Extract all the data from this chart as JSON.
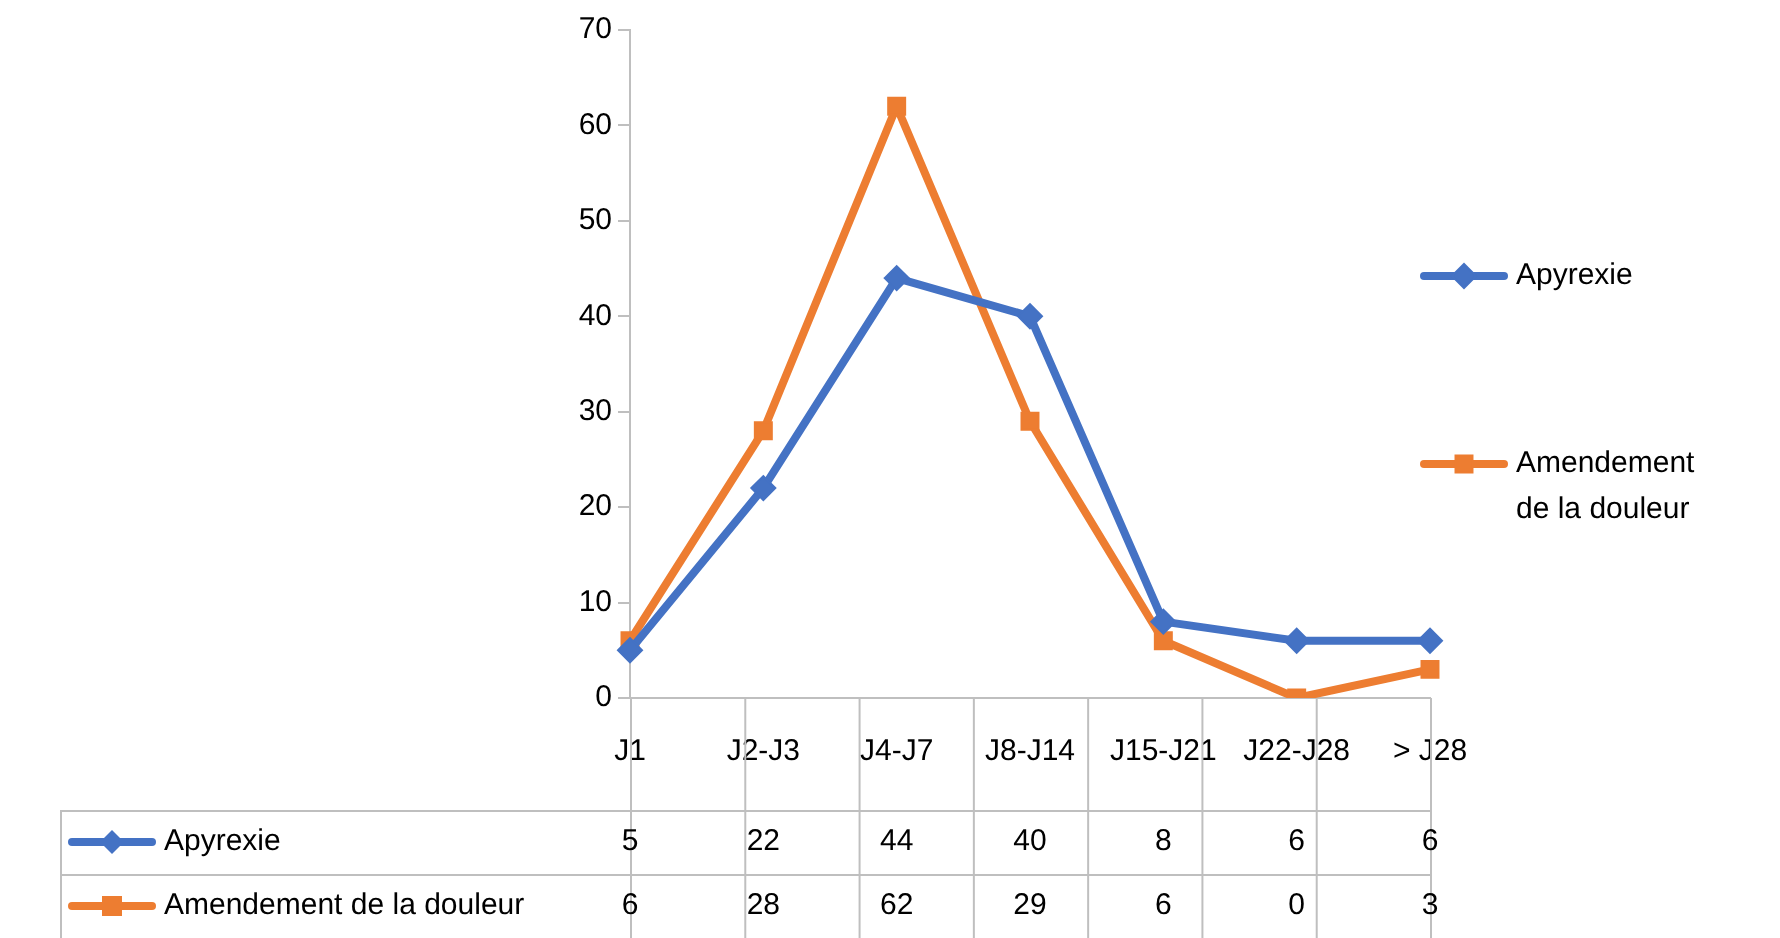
{
  "chart_data": {
    "type": "line",
    "categories": [
      "J1",
      "J2-J3",
      "J4-J7",
      "J8-J14",
      "J15-J21",
      "J22-J28",
      "> J28"
    ],
    "series": [
      {
        "name": "Apyrexie",
        "color": "#4472c4",
        "marker": "diamond",
        "values": [
          5,
          22,
          44,
          40,
          8,
          6,
          6
        ]
      },
      {
        "name": "Amendement de la douleur",
        "color": "#ed7d31",
        "marker": "square",
        "values": [
          6,
          28,
          62,
          29,
          6,
          0,
          3
        ]
      }
    ],
    "ylim": [
      0,
      70
    ],
    "yticks": [
      0,
      10,
      20,
      30,
      40,
      50,
      60,
      70
    ],
    "grid": false,
    "legend": "right",
    "data_labels": true,
    "line_style": "solid"
  }
}
